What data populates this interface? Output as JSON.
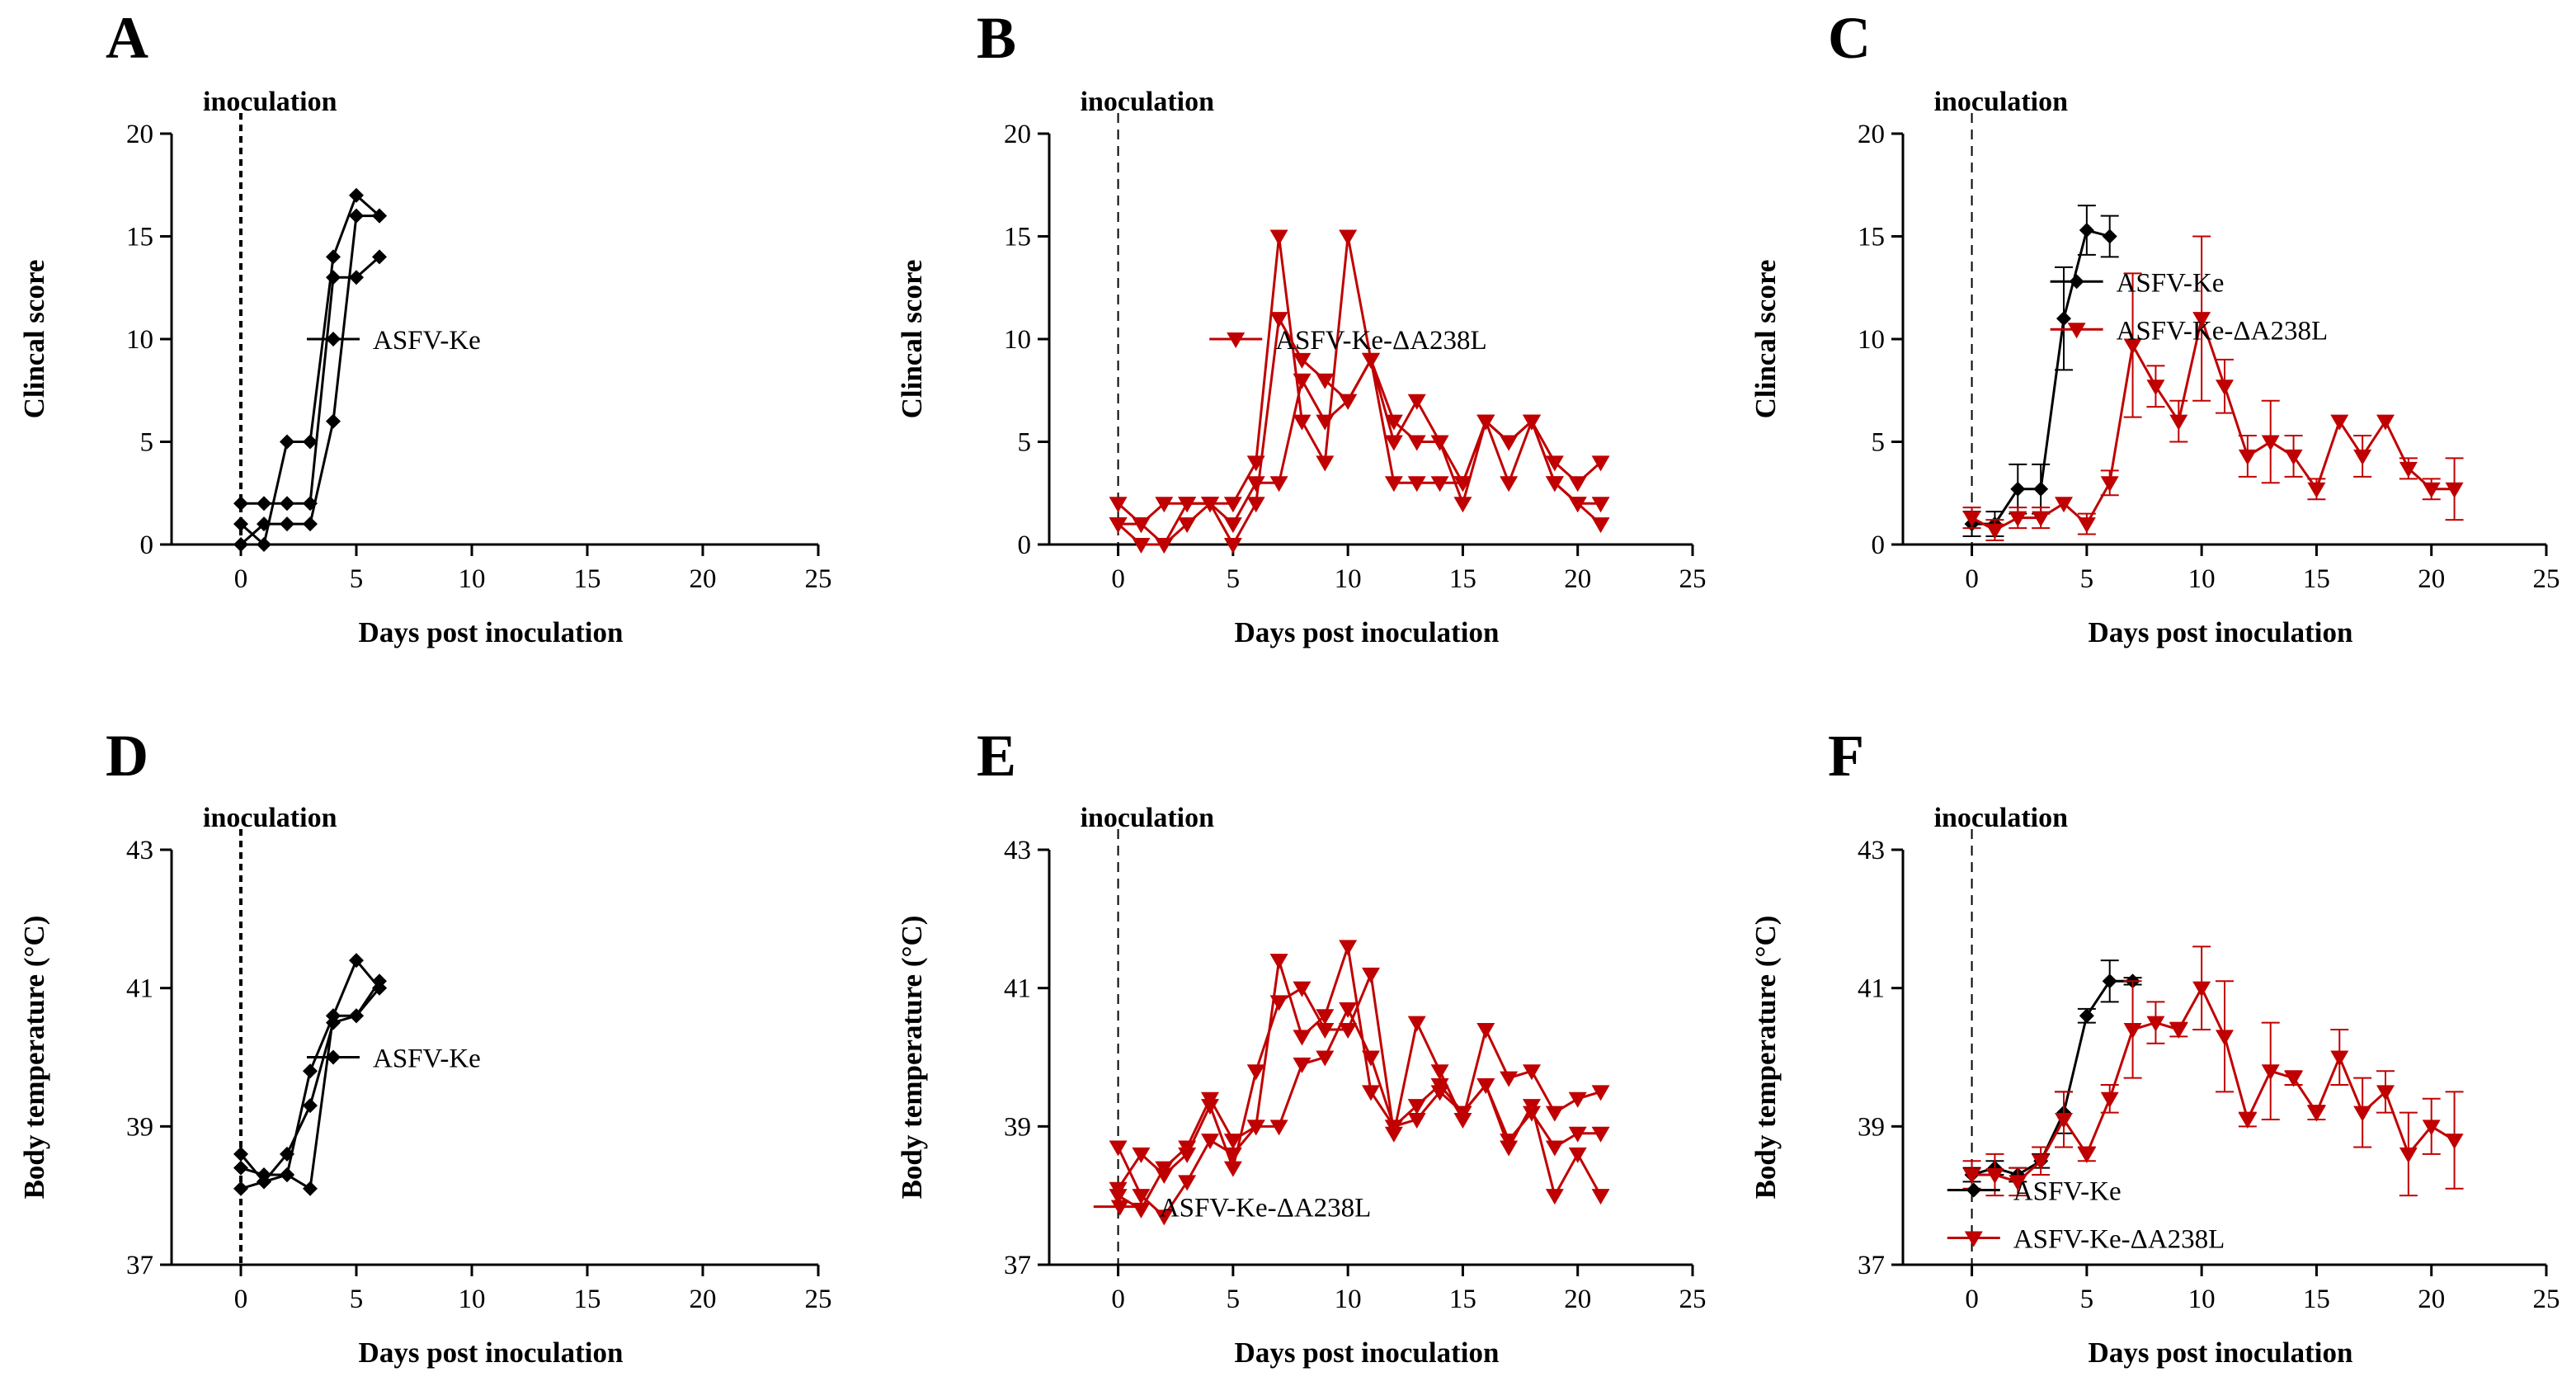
{
  "colors": {
    "ke": "#000000",
    "mutant": "#c00000"
  },
  "chart_data": [
    {
      "panel": "A",
      "type": "line",
      "xlabel": "Days post inoculation",
      "ylabel": "Clincal score",
      "xlim": [
        -3,
        25
      ],
      "ylim": [
        0,
        20
      ],
      "xticks": [
        0,
        5,
        10,
        15,
        20,
        25
      ],
      "yticks": [
        0,
        5,
        10,
        15,
        20
      ],
      "annotation": "inoculation",
      "vline_x": 0,
      "vline_style": "bold",
      "legend": {
        "placement": "middle-left",
        "entries": [
          {
            "label": "ASFV-Ke",
            "color": "ke",
            "marker": "diamond"
          }
        ]
      },
      "series": [
        {
          "name": "ASFV-Ke",
          "color": "ke",
          "marker": "diamond",
          "x": [
            0,
            1,
            2,
            3,
            4,
            5,
            6
          ],
          "y": [
            2,
            2,
            2,
            2,
            13,
            13,
            14
          ]
        },
        {
          "name": "ASFV-Ke",
          "color": "ke",
          "marker": "diamond",
          "x": [
            0,
            1,
            2,
            3,
            4,
            5,
            6
          ],
          "y": [
            1,
            0,
            5,
            5,
            14,
            17,
            16
          ]
        },
        {
          "name": "ASFV-Ke",
          "color": "ke",
          "marker": "diamond",
          "x": [
            0,
            1,
            2,
            3,
            4,
            5,
            6
          ],
          "y": [
            0,
            1,
            1,
            1,
            6,
            16,
            16
          ]
        }
      ]
    },
    {
      "panel": "B",
      "type": "line",
      "xlabel": "Days post inoculation",
      "ylabel": "Clincal score",
      "xlim": [
        -3,
        25
      ],
      "ylim": [
        0,
        20
      ],
      "xticks": [
        0,
        5,
        10,
        15,
        20,
        25
      ],
      "yticks": [
        0,
        5,
        10,
        15,
        20
      ],
      "annotation": "inoculation",
      "vline_x": 0,
      "vline_style": "thin",
      "legend": {
        "placement": "middle-right",
        "entries": [
          {
            "label": "ASFV-Ke-ΔA238L",
            "color": "mutant",
            "marker": "triangle-down"
          }
        ]
      },
      "series": [
        {
          "name": "ASFV-Ke-ΔA238L",
          "color": "mutant",
          "marker": "triangle-down",
          "x": [
            0,
            1,
            2,
            3,
            4,
            5,
            6,
            7,
            8,
            9,
            10,
            11,
            12,
            13,
            14,
            15,
            16,
            17,
            18,
            19,
            20,
            21
          ],
          "y": [
            2,
            1,
            2,
            2,
            2,
            2,
            4,
            15,
            6,
            4,
            15,
            9,
            5,
            7,
            5,
            3,
            6,
            5,
            6,
            4,
            3,
            4
          ]
        },
        {
          "name": "ASFV-Ke-ΔA238L",
          "color": "mutant",
          "marker": "triangle-down",
          "x": [
            0,
            1,
            2,
            3,
            4,
            5,
            6,
            7,
            8,
            9,
            10,
            11,
            12,
            13,
            14,
            15,
            16,
            17,
            18,
            19,
            20,
            21
          ],
          "y": [
            1,
            0,
            0,
            2,
            2,
            0,
            2,
            11,
            9,
            8,
            7,
            9,
            3,
            3,
            3,
            3,
            6,
            3,
            6,
            3,
            2,
            1
          ]
        },
        {
          "name": "ASFV-Ke-ΔA238L",
          "color": "mutant",
          "marker": "triangle-down",
          "x": [
            0,
            1,
            2,
            3,
            4,
            5,
            6,
            7,
            8,
            9,
            10,
            11,
            12,
            13,
            14,
            15,
            16,
            17,
            18,
            19,
            20,
            21
          ],
          "y": [
            1,
            1,
            0,
            1,
            2,
            1,
            3,
            3,
            8,
            6,
            7,
            9,
            6,
            5,
            5,
            2,
            6,
            5,
            6,
            3,
            2,
            2
          ]
        }
      ]
    },
    {
      "panel": "C",
      "type": "line",
      "xlabel": "Days post inoculation",
      "ylabel": "Clincal score",
      "xlim": [
        -3,
        25
      ],
      "ylim": [
        0,
        20
      ],
      "xticks": [
        0,
        5,
        10,
        15,
        20,
        25
      ],
      "yticks": [
        0,
        5,
        10,
        15,
        20
      ],
      "annotation": "inoculation",
      "vline_x": 0,
      "vline_style": "thin",
      "legend": {
        "placement": "upper-right",
        "entries": [
          {
            "label": "ASFV-Ke",
            "color": "ke",
            "marker": "diamond"
          },
          {
            "label": "ASFV-Ke-ΔA238L",
            "color": "mutant",
            "marker": "triangle-down"
          }
        ]
      },
      "series": [
        {
          "name": "ASFV-Ke",
          "color": "ke",
          "marker": "diamond",
          "x": [
            0,
            1,
            2,
            3,
            4,
            5,
            6
          ],
          "y": [
            1,
            1,
            2.7,
            2.7,
            11,
            15.3,
            15
          ],
          "err": [
            0.6,
            0.6,
            1.2,
            1.2,
            2.5,
            1.2,
            1
          ]
        },
        {
          "name": "ASFV-Ke-ΔA238L",
          "color": "mutant",
          "marker": "triangle-down",
          "x": [
            0,
            1,
            2,
            3,
            4,
            5,
            6,
            7,
            8,
            9,
            10,
            11,
            12,
            13,
            14,
            15,
            16,
            17,
            18,
            19,
            20,
            21
          ],
          "y": [
            1.3,
            0.7,
            1.3,
            1.3,
            2,
            1,
            3,
            9.7,
            7.7,
            6,
            11,
            7.7,
            4.3,
            5,
            4.3,
            2.7,
            6,
            4.3,
            6,
            3.7,
            2.7,
            2.7
          ],
          "err": [
            0.5,
            0.5,
            0.5,
            0.5,
            0,
            0.5,
            0.6,
            3.5,
            1,
            1,
            4,
            1.3,
            1,
            2,
            1,
            0.5,
            0,
            1,
            0,
            0.5,
            0.5,
            1.5
          ]
        }
      ]
    },
    {
      "panel": "D",
      "type": "line",
      "xlabel": "Days post inoculation",
      "ylabel": "Body temperature (°C)",
      "xlim": [
        -3,
        25
      ],
      "ylim": [
        37,
        43
      ],
      "xticks": [
        0,
        5,
        10,
        15,
        20,
        25
      ],
      "yticks": [
        37,
        39,
        41,
        43
      ],
      "annotation": "inoculation",
      "vline_x": 0,
      "vline_style": "bold",
      "legend": {
        "placement": "middle-left",
        "entries": [
          {
            "label": "ASFV-Ke",
            "color": "ke",
            "marker": "diamond"
          }
        ]
      },
      "series": [
        {
          "name": "ASFV-Ke",
          "color": "ke",
          "marker": "diamond",
          "x": [
            0,
            1,
            2,
            3,
            4,
            5,
            6
          ],
          "y": [
            38.6,
            38.2,
            38.3,
            38.1,
            40.6,
            41.4,
            41.0
          ]
        },
        {
          "name": "ASFV-Ke",
          "color": "ke",
          "marker": "diamond",
          "x": [
            0,
            1,
            2,
            3,
            4,
            5,
            6
          ],
          "y": [
            38.4,
            38.3,
            38.3,
            39.8,
            40.6,
            40.6,
            41.1
          ]
        },
        {
          "name": "ASFV-Ke",
          "color": "ke",
          "marker": "diamond",
          "x": [
            0,
            1,
            2,
            3,
            4,
            5,
            6
          ],
          "y": [
            38.1,
            38.2,
            38.6,
            39.3,
            40.5,
            40.6,
            41.0
          ]
        }
      ]
    },
    {
      "panel": "E",
      "type": "line",
      "xlabel": "Days post inoculation",
      "ylabel": "Body temperature (°C)",
      "xlim": [
        -3,
        25
      ],
      "ylim": [
        37,
        43
      ],
      "xticks": [
        0,
        5,
        10,
        15,
        20,
        25
      ],
      "yticks": [
        37,
        39,
        41,
        43
      ],
      "annotation": "inoculation",
      "vline_x": 0,
      "vline_style": "thin",
      "legend": {
        "placement": "lower-middle",
        "entries": [
          {
            "label": "ASFV-Ke-ΔA238L",
            "color": "mutant",
            "marker": "triangle-down"
          }
        ]
      },
      "series": [
        {
          "name": "ASFV-Ke-ΔA238L",
          "color": "mutant",
          "marker": "triangle-down",
          "x": [
            0,
            1,
            2,
            3,
            4,
            5,
            6,
            7,
            8,
            9,
            10,
            11,
            12,
            13,
            14,
            15,
            16,
            17,
            18,
            19,
            20,
            21
          ],
          "y": [
            38.7,
            38.0,
            37.7,
            38.2,
            38.8,
            38.6,
            39.0,
            41.4,
            40.3,
            40.6,
            41.6,
            39.5,
            39.0,
            39.1,
            39.5,
            39.2,
            39.6,
            38.7,
            39.3,
            38.0,
            38.6,
            38.0
          ]
        },
        {
          "name": "ASFV-Ke-ΔA238L",
          "color": "mutant",
          "marker": "triangle-down",
          "x": [
            0,
            1,
            2,
            3,
            4,
            5,
            6,
            7,
            8,
            9,
            10,
            11,
            12,
            13,
            14,
            15,
            16,
            17,
            18,
            19,
            20,
            21
          ],
          "y": [
            38.1,
            38.6,
            38.3,
            38.6,
            39.3,
            38.4,
            39.8,
            40.8,
            41.0,
            40.4,
            40.4,
            41.2,
            38.9,
            40.5,
            39.8,
            39.1,
            40.4,
            39.7,
            39.8,
            39.2,
            39.4,
            39.5
          ]
        },
        {
          "name": "ASFV-Ke-ΔA238L",
          "color": "mutant",
          "marker": "triangle-down",
          "x": [
            0,
            1,
            2,
            3,
            4,
            5,
            6,
            7,
            8,
            9,
            10,
            11,
            12,
            13,
            14,
            15,
            16,
            17,
            18,
            19,
            20,
            21
          ],
          "y": [
            38.0,
            37.8,
            38.4,
            38.7,
            39.4,
            38.8,
            39.0,
            39.0,
            39.9,
            40.0,
            40.7,
            40.0,
            39.0,
            39.3,
            39.6,
            39.2,
            39.6,
            38.8,
            39.2,
            38.7,
            38.9,
            38.9
          ]
        }
      ]
    },
    {
      "panel": "F",
      "type": "line",
      "xlabel": "Days post inoculation",
      "ylabel": "Body temperature (°C)",
      "xlim": [
        -3,
        25
      ],
      "ylim": [
        37,
        43
      ],
      "xticks": [
        0,
        5,
        10,
        15,
        20,
        25
      ],
      "yticks": [
        37,
        39,
        41,
        43
      ],
      "annotation": "inoculation",
      "vline_x": 0,
      "vline_style": "thin",
      "legend": {
        "placement": "lower-left",
        "entries": [
          {
            "label": "ASFV-Ke",
            "color": "ke",
            "marker": "diamond"
          },
          {
            "label": "ASFV-Ke-ΔA238L",
            "color": "mutant",
            "marker": "triangle-down"
          }
        ]
      },
      "series": [
        {
          "name": "ASFV-Ke",
          "color": "ke",
          "marker": "diamond",
          "x": [
            0,
            1,
            2,
            3,
            4,
            5,
            6,
            7
          ],
          "y": [
            38.3,
            38.4,
            38.3,
            38.5,
            39.2,
            40.6,
            41.1,
            41.1
          ],
          "err": [
            0.1,
            0.1,
            0.1,
            0.1,
            0.3,
            0.1,
            0.3,
            0.05
          ]
        },
        {
          "name": "ASFV-Ke-ΔA238L",
          "color": "mutant",
          "marker": "triangle-down",
          "x": [
            0,
            1,
            2,
            3,
            4,
            5,
            6,
            7,
            8,
            9,
            10,
            11,
            12,
            13,
            14,
            15,
            16,
            17,
            18,
            19,
            20,
            21
          ],
          "y": [
            38.3,
            38.3,
            38.2,
            38.5,
            39.1,
            38.6,
            39.4,
            40.4,
            40.5,
            40.4,
            41.0,
            40.3,
            39.1,
            39.8,
            39.7,
            39.2,
            40.0,
            39.2,
            39.5,
            38.6,
            39.0,
            38.8
          ],
          "err": [
            0.2,
            0.3,
            0.2,
            0.2,
            0.4,
            0.1,
            0.2,
            0.7,
            0.3,
            0.1,
            0.6,
            0.8,
            0.1,
            0.7,
            0.1,
            0.1,
            0.4,
            0.5,
            0.3,
            0.6,
            0.4,
            0.7
          ]
        }
      ]
    }
  ]
}
